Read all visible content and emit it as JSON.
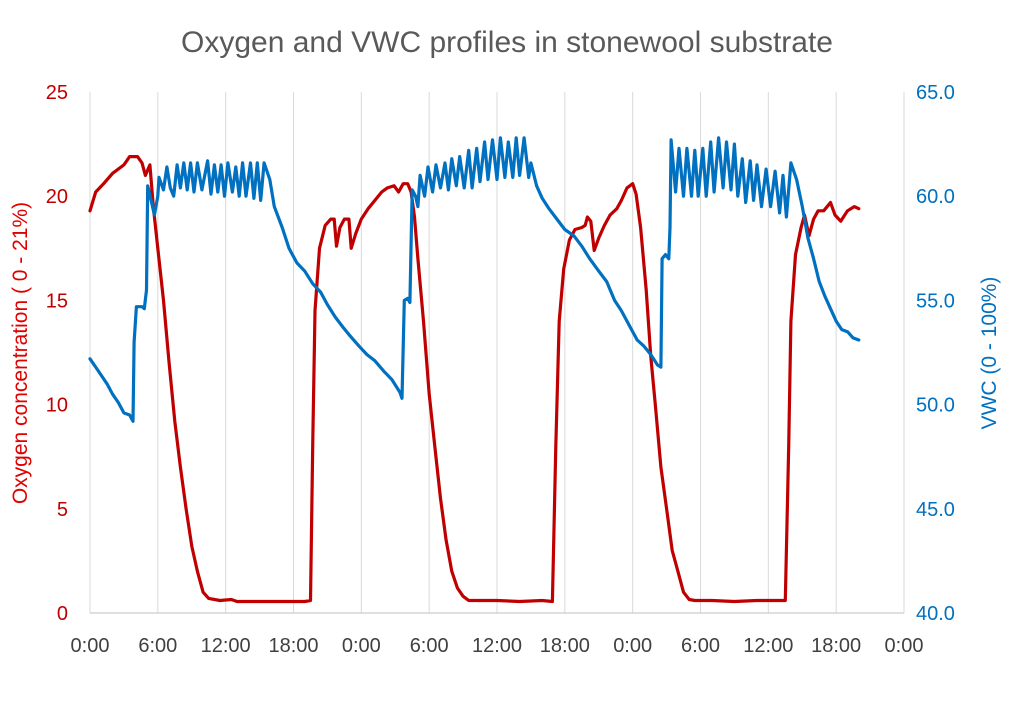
{
  "chart_data": {
    "type": "line",
    "title": "Oxygen and VWC profiles in stonewool substrate",
    "x_tick_labels": [
      "0:00",
      "6:00",
      "12:00",
      "18:00",
      "0:00",
      "6:00",
      "12:00",
      "18:00",
      "0:00",
      "6:00",
      "12:00",
      "18:00",
      "0:00"
    ],
    "x_range_hours": [
      0,
      72
    ],
    "y_left": {
      "label": "Oxygen concentration ( 0 - 21%)",
      "range": [
        0,
        25
      ],
      "ticks": [
        "0",
        "5",
        "10",
        "15",
        "20",
        "25"
      ],
      "color": "#c00000"
    },
    "y_right": {
      "label": "VWC (0 - 100%)",
      "range": [
        40,
        65
      ],
      "ticks": [
        "40.0",
        "45.0",
        "50.0",
        "55.0",
        "60.0",
        "65.0"
      ],
      "color": "#0070c0"
    },
    "grid": "vertical",
    "legend": "none",
    "series": [
      {
        "axis": "left",
        "color": "#c00000",
        "points": [
          [
            0,
            19.3
          ],
          [
            0.5,
            20.2
          ],
          [
            1.2,
            20.6
          ],
          [
            2,
            21.1
          ],
          [
            3,
            21.5
          ],
          [
            3.5,
            21.9
          ],
          [
            4.2,
            21.9
          ],
          [
            4.6,
            21.6
          ],
          [
            4.9,
            21.0
          ],
          [
            5.3,
            21.5
          ],
          [
            5.6,
            19.5
          ],
          [
            6,
            17.5
          ],
          [
            6.5,
            15.0
          ],
          [
            7,
            12.0
          ],
          [
            7.5,
            9.2
          ],
          [
            8,
            7.0
          ],
          [
            8.5,
            5.0
          ],
          [
            9,
            3.2
          ],
          [
            9.5,
            2.0
          ],
          [
            10,
            1.0
          ],
          [
            10.5,
            0.7
          ],
          [
            11.5,
            0.6
          ],
          [
            12.5,
            0.65
          ],
          [
            13,
            0.55
          ],
          [
            19,
            0.55
          ],
          [
            19.5,
            0.6
          ],
          [
            19.7,
            8.0
          ],
          [
            19.9,
            14.5
          ],
          [
            20.3,
            17.5
          ],
          [
            20.8,
            18.6
          ],
          [
            21.3,
            18.9
          ],
          [
            21.6,
            18.9
          ],
          [
            21.8,
            17.6
          ],
          [
            22.1,
            18.5
          ],
          [
            22.5,
            18.9
          ],
          [
            22.9,
            18.9
          ],
          [
            23.1,
            17.5
          ],
          [
            23.5,
            18.2
          ],
          [
            24,
            18.9
          ],
          [
            24.6,
            19.4
          ],
          [
            25.2,
            19.8
          ],
          [
            25.8,
            20.2
          ],
          [
            26.3,
            20.4
          ],
          [
            26.9,
            20.5
          ],
          [
            27.3,
            20.2
          ],
          [
            27.7,
            20.6
          ],
          [
            28.1,
            20.6
          ],
          [
            28.4,
            20.2
          ],
          [
            28.7,
            19.0
          ],
          [
            29,
            17.0
          ],
          [
            29.5,
            14.0
          ],
          [
            30,
            10.5
          ],
          [
            30.5,
            8.0
          ],
          [
            31,
            5.5
          ],
          [
            31.5,
            3.5
          ],
          [
            32,
            2.0
          ],
          [
            32.5,
            1.2
          ],
          [
            33,
            0.8
          ],
          [
            33.5,
            0.6
          ],
          [
            36,
            0.6
          ],
          [
            38,
            0.55
          ],
          [
            40,
            0.6
          ],
          [
            40.9,
            0.55
          ],
          [
            41.2,
            8.0
          ],
          [
            41.5,
            14.0
          ],
          [
            41.9,
            16.5
          ],
          [
            42.4,
            17.9
          ],
          [
            42.9,
            18.4
          ],
          [
            43.5,
            18.5
          ],
          [
            43.8,
            18.6
          ],
          [
            44.0,
            19.0
          ],
          [
            44.3,
            18.8
          ],
          [
            44.6,
            17.4
          ],
          [
            45,
            18.0
          ],
          [
            45.5,
            18.6
          ],
          [
            46,
            19.1
          ],
          [
            46.6,
            19.4
          ],
          [
            47,
            19.8
          ],
          [
            47.5,
            20.4
          ],
          [
            48,
            20.6
          ],
          [
            48.3,
            20.1
          ],
          [
            48.7,
            18.5
          ],
          [
            49.2,
            15.5
          ],
          [
            49.6,
            12.3
          ],
          [
            50,
            10.0
          ],
          [
            50.5,
            7.0
          ],
          [
            51,
            5.0
          ],
          [
            51.5,
            3.0
          ],
          [
            52,
            2.0
          ],
          [
            52.5,
            1.0
          ],
          [
            53,
            0.65
          ],
          [
            53.5,
            0.6
          ],
          [
            55,
            0.6
          ],
          [
            57,
            0.55
          ],
          [
            59,
            0.6
          ],
          [
            61.5,
            0.6
          ],
          [
            61.8,
            8.0
          ],
          [
            62,
            14.0
          ],
          [
            62.4,
            17.2
          ],
          [
            62.9,
            18.5
          ],
          [
            63.2,
            19.1
          ],
          [
            63.6,
            18.1
          ],
          [
            64,
            18.9
          ],
          [
            64.4,
            19.3
          ],
          [
            64.9,
            19.3
          ],
          [
            65.5,
            19.7
          ],
          [
            65.9,
            19.1
          ],
          [
            66.4,
            18.8
          ],
          [
            67,
            19.3
          ],
          [
            67.6,
            19.5
          ],
          [
            68,
            19.4
          ]
        ]
      },
      {
        "axis": "right",
        "color": "#0070c0",
        "points": [
          [
            0,
            52.2
          ],
          [
            0.5,
            51.8
          ],
          [
            1,
            51.4
          ],
          [
            1.5,
            51.0
          ],
          [
            2,
            50.5
          ],
          [
            2.5,
            50.1
          ],
          [
            3,
            49.6
          ],
          [
            3.5,
            49.5
          ],
          [
            3.8,
            49.2
          ],
          [
            3.9,
            53.0
          ],
          [
            4.1,
            54.7
          ],
          [
            4.6,
            54.7
          ],
          [
            4.8,
            54.6
          ],
          [
            5.0,
            55.5
          ],
          [
            5.1,
            60.5
          ],
          [
            5.4,
            59.8
          ],
          [
            5.7,
            59.1
          ],
          [
            6,
            60.0
          ],
          [
            6.1,
            60.9
          ],
          [
            6.5,
            60.3
          ],
          [
            6.8,
            61.4
          ],
          [
            7.1,
            60.4
          ],
          [
            7.4,
            60.0
          ],
          [
            7.7,
            61.5
          ],
          [
            8.0,
            60.4
          ],
          [
            8.3,
            61.6
          ],
          [
            8.6,
            60.3
          ],
          [
            8.9,
            61.6
          ],
          [
            9.2,
            60.2
          ],
          [
            9.5,
            61.6
          ],
          [
            9.9,
            60.3
          ],
          [
            10.4,
            61.7
          ],
          [
            10.7,
            60.1
          ],
          [
            11,
            61.5
          ],
          [
            11.3,
            60.2
          ],
          [
            11.6,
            61.5
          ],
          [
            11.9,
            60.0
          ],
          [
            12.2,
            61.6
          ],
          [
            12.6,
            60.2
          ],
          [
            12.9,
            61.4
          ],
          [
            13.2,
            60.0
          ],
          [
            13.5,
            61.6
          ],
          [
            13.8,
            60.0
          ],
          [
            14.2,
            61.6
          ],
          [
            14.5,
            59.9
          ],
          [
            14.8,
            61.6
          ],
          [
            15.1,
            59.8
          ],
          [
            15.4,
            61.6
          ],
          [
            15.9,
            60.8
          ],
          [
            16.3,
            59.5
          ],
          [
            17,
            58.5
          ],
          [
            17.6,
            57.5
          ],
          [
            18.3,
            56.8
          ],
          [
            19,
            56.4
          ],
          [
            19.7,
            55.8
          ],
          [
            20.4,
            55.4
          ],
          [
            21,
            54.8
          ],
          [
            21.7,
            54.2
          ],
          [
            22.4,
            53.7
          ],
          [
            23,
            53.3
          ],
          [
            23.8,
            52.8
          ],
          [
            24.5,
            52.4
          ],
          [
            25.2,
            52.1
          ],
          [
            26,
            51.6
          ],
          [
            26.7,
            51.2
          ],
          [
            27.4,
            50.6
          ],
          [
            27.6,
            50.3
          ],
          [
            27.8,
            55.0
          ],
          [
            28.1,
            55.1
          ],
          [
            28.3,
            54.9
          ],
          [
            28.5,
            60.3
          ],
          [
            28.8,
            60.0
          ],
          [
            29,
            59.5
          ],
          [
            29.2,
            61.0
          ],
          [
            29.6,
            60.0
          ],
          [
            29.9,
            61.4
          ],
          [
            30.3,
            60.2
          ],
          [
            30.6,
            61.5
          ],
          [
            31,
            60.4
          ],
          [
            31.4,
            61.6
          ],
          [
            31.7,
            60.3
          ],
          [
            32.0,
            61.8
          ],
          [
            32.4,
            60.5
          ],
          [
            32.7,
            61.9
          ],
          [
            33.1,
            60.4
          ],
          [
            33.5,
            62.2
          ],
          [
            33.8,
            60.4
          ],
          [
            34.2,
            62.3
          ],
          [
            34.5,
            60.7
          ],
          [
            34.9,
            62.6
          ],
          [
            35.2,
            60.8
          ],
          [
            35.6,
            62.7
          ],
          [
            36,
            60.8
          ],
          [
            36.3,
            62.8
          ],
          [
            36.7,
            60.9
          ],
          [
            37,
            62.6
          ],
          [
            37.4,
            60.9
          ],
          [
            37.7,
            62.8
          ],
          [
            38,
            61.0
          ],
          [
            38.4,
            62.8
          ],
          [
            38.8,
            60.9
          ],
          [
            39.0,
            61.6
          ],
          [
            39.5,
            60.5
          ],
          [
            40,
            59.9
          ],
          [
            40.6,
            59.4
          ],
          [
            41.3,
            58.9
          ],
          [
            42,
            58.4
          ],
          [
            42.8,
            58.1
          ],
          [
            43.5,
            57.6
          ],
          [
            44.2,
            57.0
          ],
          [
            45,
            56.4
          ],
          [
            45.7,
            55.9
          ],
          [
            46.4,
            55.0
          ],
          [
            47,
            54.5
          ],
          [
            47.8,
            53.7
          ],
          [
            48.4,
            53.1
          ],
          [
            49,
            52.8
          ],
          [
            49.6,
            52.4
          ],
          [
            50.2,
            51.9
          ],
          [
            50.5,
            51.8
          ],
          [
            50.6,
            57.0
          ],
          [
            50.9,
            57.2
          ],
          [
            51.2,
            57.0
          ],
          [
            51.3,
            58.5
          ],
          [
            51.4,
            62.7
          ],
          [
            51.8,
            60.2
          ],
          [
            52.1,
            62.3
          ],
          [
            52.5,
            60.0
          ],
          [
            52.8,
            62.3
          ],
          [
            53.2,
            60.0
          ],
          [
            53.5,
            62.2
          ],
          [
            53.8,
            60.0
          ],
          [
            54.2,
            62.3
          ],
          [
            54.5,
            60.0
          ],
          [
            54.9,
            62.6
          ],
          [
            55.2,
            60.2
          ],
          [
            55.6,
            62.8
          ],
          [
            56,
            60.4
          ],
          [
            56.3,
            62.6
          ],
          [
            56.7,
            60.3
          ],
          [
            57,
            62.5
          ],
          [
            57.3,
            60.0
          ],
          [
            57.7,
            61.8
          ],
          [
            58,
            59.7
          ],
          [
            58.4,
            61.7
          ],
          [
            58.7,
            59.8
          ],
          [
            59.0,
            61.5
          ],
          [
            59.4,
            59.5
          ],
          [
            59.8,
            61.3
          ],
          [
            60.2,
            59.5
          ],
          [
            60.6,
            61.2
          ],
          [
            61,
            59.2
          ],
          [
            61.3,
            61.0
          ],
          [
            61.6,
            59.0
          ],
          [
            62,
            61.6
          ],
          [
            62.5,
            60.8
          ],
          [
            63,
            59.5
          ],
          [
            63.5,
            58.0
          ],
          [
            64,
            57.0
          ],
          [
            64.5,
            55.9
          ],
          [
            65,
            55.2
          ],
          [
            65.5,
            54.6
          ],
          [
            66,
            54.0
          ],
          [
            66.5,
            53.6
          ],
          [
            67,
            53.5
          ],
          [
            67.5,
            53.2
          ],
          [
            68,
            53.1
          ]
        ]
      }
    ]
  }
}
